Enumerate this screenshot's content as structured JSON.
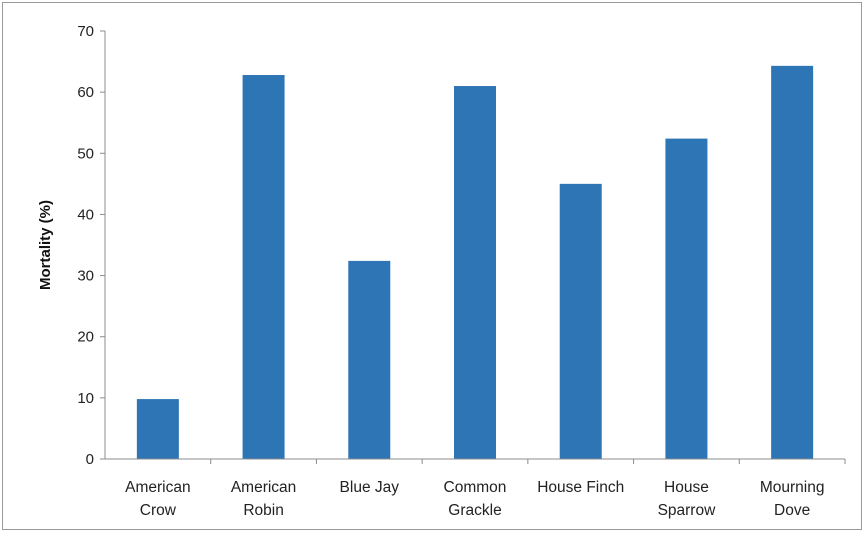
{
  "chart_data": {
    "type": "bar",
    "title": "",
    "xlabel": "",
    "ylabel": "Mortality (%)",
    "ylim": [
      0,
      70
    ],
    "yticks": [
      0,
      10,
      20,
      30,
      40,
      50,
      60,
      70
    ],
    "grid": false,
    "legend": "none",
    "bar_color": "#2e75b6",
    "categories": [
      [
        "American",
        "Crow"
      ],
      [
        "American",
        "Robin"
      ],
      [
        "Blue Jay"
      ],
      [
        "Common",
        "Grackle"
      ],
      [
        "House Finch"
      ],
      [
        "House",
        "Sparrow"
      ],
      [
        "Mourning",
        "Dove"
      ]
    ],
    "values": [
      9.8,
      62.8,
      32.4,
      61.0,
      45.0,
      52.4,
      64.3
    ]
  }
}
